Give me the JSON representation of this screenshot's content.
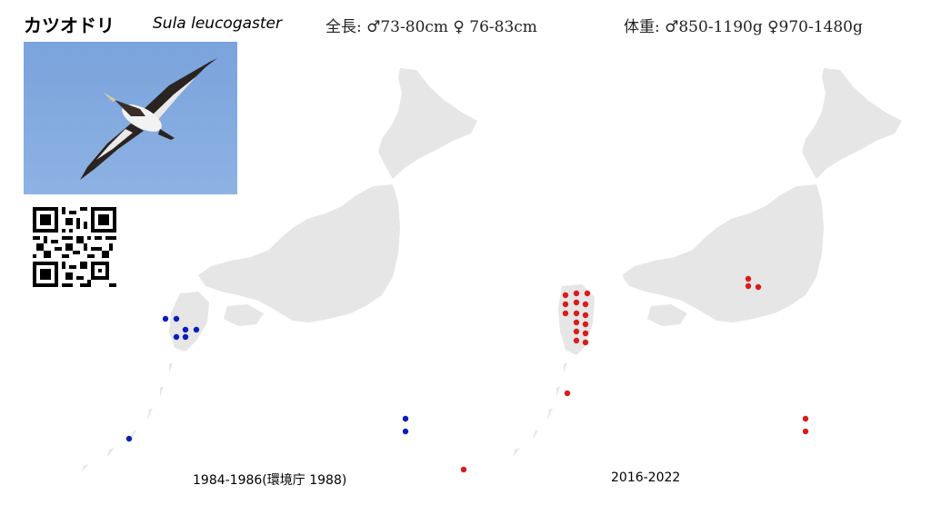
{
  "header": {
    "name_ja": "カツオドリ",
    "name_sci": "Sula leucogaster",
    "length": "全長: ♂73-80cm ♀ 76-83cm",
    "weight": "体重: ♂850-1190g ♀970-1480g"
  },
  "maps": [
    {
      "caption": "1984-1986(環境庁 1988)",
      "marker_color": "#0a1fb8"
    },
    {
      "caption": "2016-2022",
      "marker_color": "#d81c1c"
    }
  ],
  "colors": {
    "land": "#e6e6e6",
    "sky": "#7fa6dd"
  },
  "icons": [
    "bird-photo",
    "qr-code"
  ]
}
